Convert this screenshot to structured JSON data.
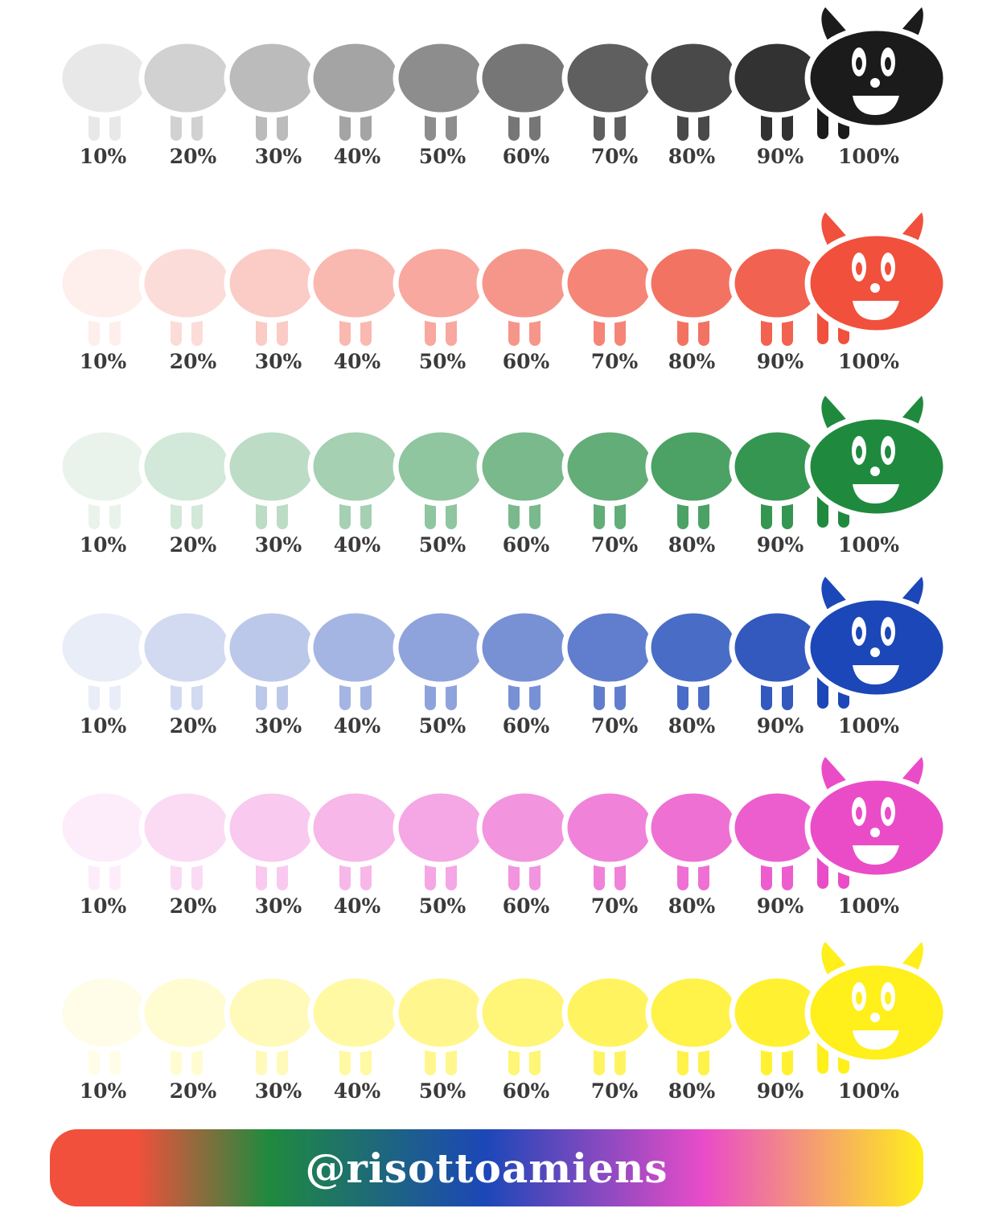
{
  "rows": [
    {
      "name": "black",
      "color": "#1b1b1b"
    },
    {
      "name": "red",
      "color": "#f0503c"
    },
    {
      "name": "green",
      "color": "#1f8a3e"
    },
    {
      "name": "blue",
      "color": "#1c47b8"
    },
    {
      "name": "pink",
      "color": "#ea4cc8"
    },
    {
      "name": "yellow",
      "color": "#ffef1a"
    }
  ],
  "labels": [
    "10%",
    "20%",
    "30%",
    "40%",
    "50%",
    "60%",
    "70%",
    "80%",
    "90%",
    "100%"
  ],
  "tints": [
    0.1,
    0.2,
    0.3,
    0.4,
    0.5,
    0.6,
    0.7,
    0.8,
    0.9,
    1.0
  ],
  "banner": {
    "text": "@risottoamiens",
    "gradient_colors": [
      "#f0503c",
      "#1f8a3e",
      "#1c47b8",
      "#ea4cc8",
      "#ffef1a"
    ]
  }
}
